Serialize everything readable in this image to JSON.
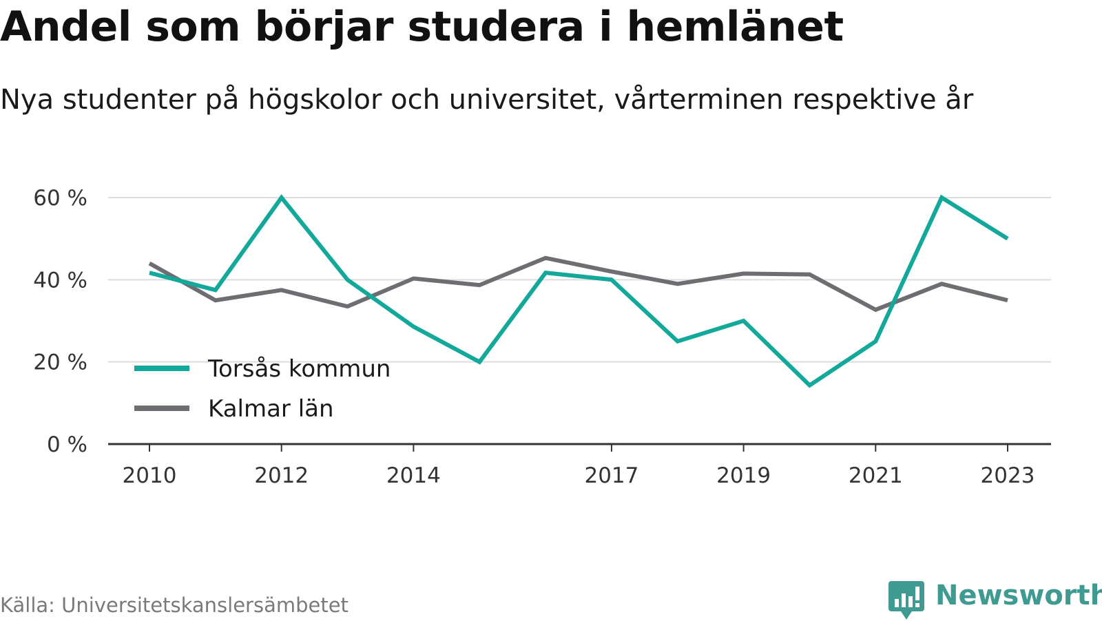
{
  "title": "Andel som börjar studera i hemlänet",
  "subtitle": "Nya studenter på högskolor och universitet, vårterminen respektive år",
  "source": "Källa: Universitetskanslersämbetet",
  "brand": {
    "name": "Newsworthy",
    "icon": "newsworthy-logo-icon"
  },
  "colors": {
    "teal": "#12a89a",
    "gray": "#6e6d72",
    "grid": "#dddddd",
    "axis": "#333333"
  },
  "chart_data": {
    "type": "line",
    "x": [
      2010,
      2011,
      2012,
      2013,
      2014,
      2015,
      2016,
      2017,
      2018,
      2019,
      2020,
      2021,
      2022,
      2023
    ],
    "xticks": [
      "2010",
      "2012",
      "2014",
      "2017",
      "2019",
      "2021",
      "2023"
    ],
    "yticks": [
      "0 %",
      "20 %",
      "40 %",
      "60 %"
    ],
    "ytick_values": [
      0,
      20,
      40,
      60
    ],
    "ylim": [
      0,
      60
    ],
    "grid": true,
    "legend_position": "lower-left",
    "series": [
      {
        "name": "Torsås kommun",
        "color": "#12a89a",
        "values": [
          41.7,
          37.5,
          60.0,
          40.0,
          28.6,
          20.0,
          41.7,
          40.0,
          25.0,
          30.0,
          14.3,
          25.0,
          60.0,
          50.0
        ]
      },
      {
        "name": "Kalmar län",
        "color": "#6e6d72",
        "values": [
          44.0,
          35.0,
          37.5,
          33.5,
          40.3,
          38.7,
          45.3,
          42.0,
          39.0,
          41.5,
          41.3,
          32.7,
          39.0,
          35.0
        ]
      }
    ]
  }
}
